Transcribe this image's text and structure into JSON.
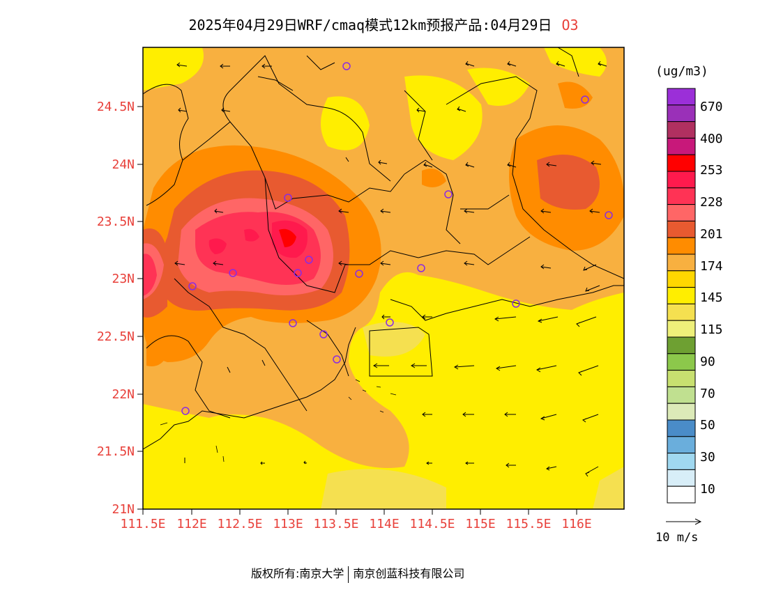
{
  "title": {
    "text": "2025年04月29日WRF/cmaq模式12km预报产品:04月29日",
    "species": "O3"
  },
  "axes": {
    "x_ticks": [
      "111.5E",
      "112E",
      "112.5E",
      "113E",
      "113.5E",
      "114E",
      "114.5E",
      "115E",
      "115.5E",
      "116E"
    ],
    "y_ticks": [
      "21N",
      "21.5N",
      "22N",
      "22.5N",
      "23N",
      "23.5N",
      "24N",
      "24.5N"
    ],
    "tick_color": "#e8403a"
  },
  "legend": {
    "unit": "(ug/m3)",
    "labels": [
      "670",
      "400",
      "253",
      "228",
      "201",
      "174",
      "145",
      "115",
      "90",
      "70",
      "50",
      "30",
      "10"
    ],
    "colors": [
      "#9b2fd8",
      "#9a30b8",
      "#b03060",
      "#c8187a",
      "#ff0000",
      "#ff1a4d",
      "#ff3355",
      "#ff6666",
      "#e85a30",
      "#ff8c00",
      "#f8b040",
      "#ffd700",
      "#ffee00",
      "#f5e050",
      "#eef07a",
      "#6ea032",
      "#8cc84b",
      "#c8e070",
      "#c0e090",
      "#dceab8",
      "#4a8cc8",
      "#6aaedc",
      "#a0d8f0",
      "#d8eef8",
      "#ffffff"
    ]
  },
  "wind_scale": {
    "label": "10 m/s"
  },
  "footer": {
    "left": "版权所有:南京大学",
    "right": "南京创蓝科技有限公司"
  },
  "colors": {
    "background_field": "#ffee00"
  }
}
